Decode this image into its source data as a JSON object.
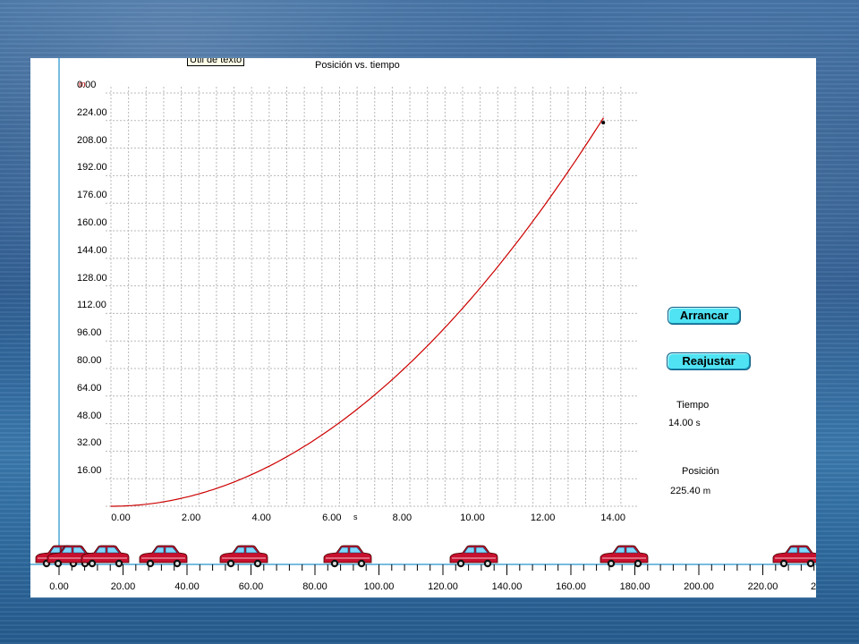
{
  "graph": {
    "title": "Posición vs. tiempo",
    "y_unit": "m",
    "x_unit": "s",
    "y_ticks": [
      "0.00",
      "224.00",
      "208.00",
      "192.00",
      "176.00",
      "160.00",
      "144.00",
      "128.00",
      "112.00",
      "96.00",
      "80.00",
      "64.00",
      "48.00",
      "32.00",
      "16.00"
    ],
    "x_ticks": [
      "0.00",
      "2.00",
      "4.00",
      "6.00",
      "8.00",
      "10.00",
      "12.00",
      "14.00"
    ],
    "curve_color": "#cc0000",
    "grid_color": "#b8b8b8"
  },
  "tooltip": {
    "text": "Útil de texto"
  },
  "controls": {
    "start_label": "Arrancar",
    "reset_label": "Reajustar",
    "button_color": "#4fe3f3"
  },
  "readouts": {
    "time_label": "Tiempo",
    "time_value": "14.00",
    "time_unit": "s",
    "position_label": "Posición",
    "position_value": "225.40",
    "position_unit": "m"
  },
  "road": {
    "labels": [
      "0.00",
      "20.00",
      "40.00",
      "60.00",
      "80.00",
      "100.00",
      "120.00",
      "140.00",
      "160.00",
      "180.00",
      "200.00",
      "220.00",
      "2"
    ],
    "car_positions_m": [
      0,
      3.6,
      14.4,
      32.4,
      57.6,
      90.0,
      129.6,
      176.4,
      230.4
    ],
    "car_color": "#c8102e",
    "window_color": "#7fd8ff"
  },
  "chart_data": {
    "type": "line",
    "title": "Posición vs. tiempo",
    "xlabel": "s",
    "ylabel": "m",
    "xlim": [
      0,
      14
    ],
    "ylim": [
      0,
      240
    ],
    "grid": true,
    "series": [
      {
        "values_x": [
          0,
          2,
          4,
          6,
          8,
          10,
          12,
          14
        ],
        "values_y": [
          0,
          4.6,
          18.4,
          41.4,
          73.6,
          115.0,
          165.6,
          225.4
        ]
      }
    ],
    "end_marker": {
      "x": 14,
      "y": 225.4
    }
  }
}
